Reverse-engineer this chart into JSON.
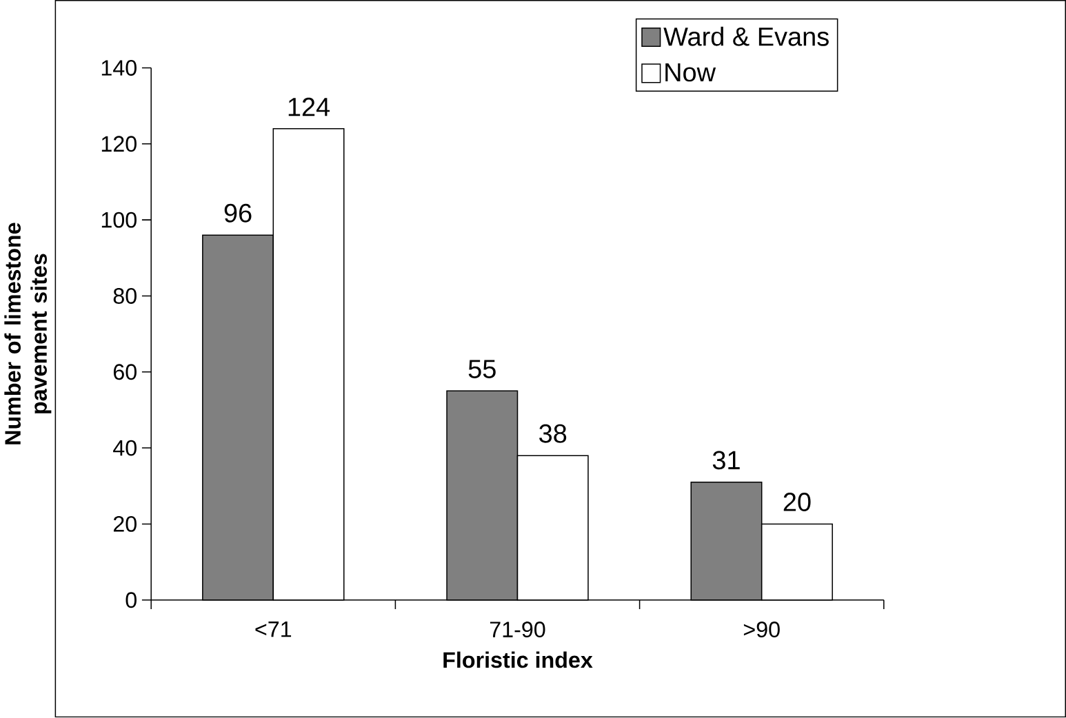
{
  "chart_data": {
    "type": "bar",
    "xlabel": "Floristic index",
    "ylabel": "Number of limestone pavement sites",
    "categories": [
      "<71",
      "71-90",
      ">90"
    ],
    "series": [
      {
        "name": "Ward & Evans",
        "color": "#808080",
        "values": [
          96,
          55,
          31
        ]
      },
      {
        "name": "Now",
        "color": "#ffffff",
        "values": [
          124,
          38,
          20
        ]
      }
    ],
    "ylim": [
      0,
      140
    ],
    "yticks": [
      0,
      20,
      40,
      60,
      80,
      100,
      120,
      140
    ],
    "data_labels": true,
    "legend": "top right",
    "grid": false
  }
}
